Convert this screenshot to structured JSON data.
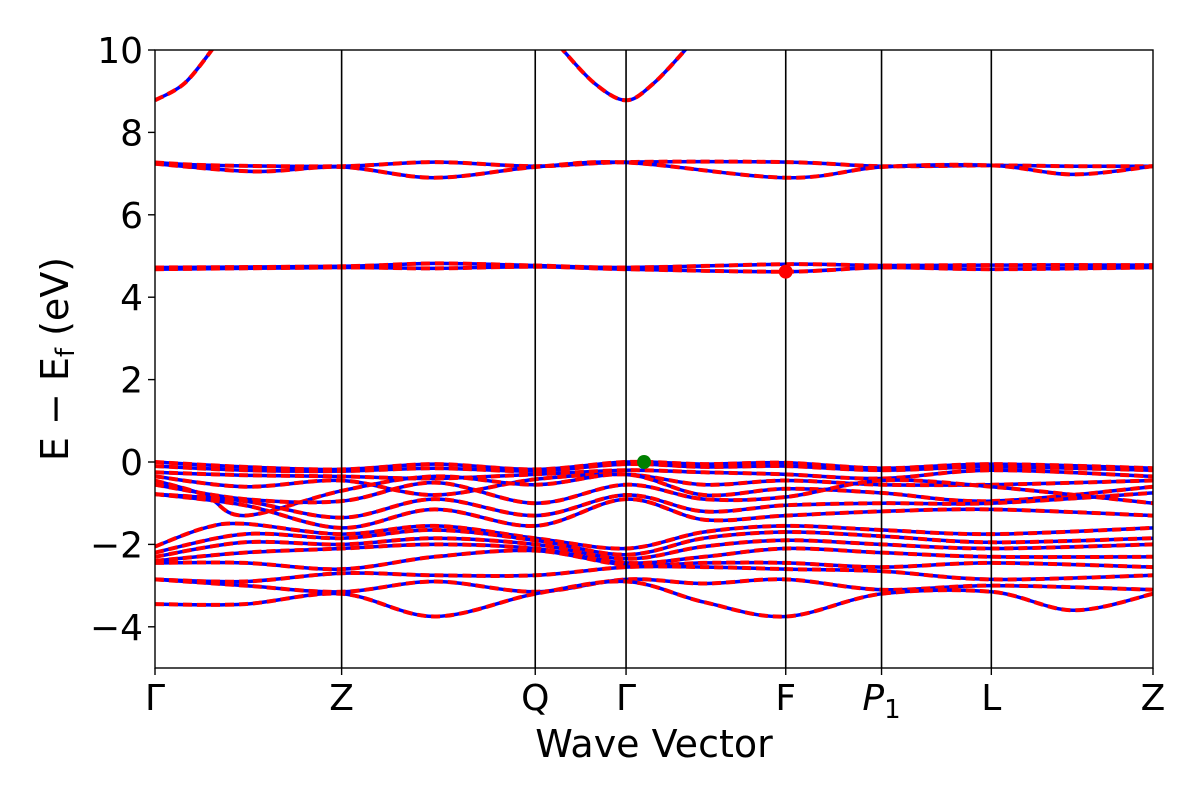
{
  "chart_data": {
    "type": "line",
    "title": "",
    "xlabel": "Wave Vector",
    "ylabel": "E − E",
    "ylabel_sub": "f",
    "ylabel_unit": " (eV)",
    "ylim": [
      -5,
      10
    ],
    "y_ticks": [
      -4,
      -2,
      0,
      2,
      4,
      6,
      8,
      10
    ],
    "y_tick_labels": [
      "−4",
      "−2",
      "0",
      "2",
      "4",
      "6",
      "8",
      "10"
    ],
    "x_range": [
      0,
      1
    ],
    "x_ticks": [
      {
        "label": "Γ",
        "sub": "",
        "pos": 0.0
      },
      {
        "label": "Z",
        "sub": "",
        "pos": 0.187
      },
      {
        "label": "Q",
        "sub": "",
        "pos": 0.381
      },
      {
        "label": "Γ",
        "sub": "",
        "pos": 0.472
      },
      {
        "label": "F",
        "sub": "",
        "pos": 0.632
      },
      {
        "label": "P",
        "sub": "1",
        "pos": 0.728
      },
      {
        "label": "L",
        "sub": "",
        "pos": 0.838
      },
      {
        "label": "Z",
        "sub": "",
        "pos": 1.0
      }
    ],
    "colors": {
      "spin_up": "#ff0000",
      "spin_down": "#0000ff",
      "vbm_marker": "#008000",
      "cbm_marker": "#ff0000"
    },
    "markers": [
      {
        "name": "vbm",
        "x": 0.49,
        "y": 0.0,
        "color": "#008000"
      },
      {
        "name": "cbm",
        "x": 0.632,
        "y": 4.62,
        "color": "#ff0000"
      }
    ],
    "series": [
      {
        "values": [
          [
            0,
            8.78
          ],
          [
            0.03,
            9.2
          ],
          [
            0.06,
            10.1
          ]
        ]
      },
      {
        "values": [
          [
            0.405,
            10.1
          ],
          [
            0.44,
            9.2
          ],
          [
            0.472,
            8.78
          ],
          [
            0.5,
            9.2
          ],
          [
            0.535,
            10.1
          ]
        ]
      },
      {
        "values": [
          [
            0,
            7.27
          ],
          [
            0.06,
            7.2
          ],
          [
            0.187,
            7.18
          ],
          [
            0.28,
            7.28
          ],
          [
            0.381,
            7.18
          ],
          [
            0.472,
            7.28
          ],
          [
            0.632,
            7.28
          ],
          [
            0.728,
            7.18
          ],
          [
            0.838,
            7.2
          ],
          [
            0.92,
            7.18
          ],
          [
            1.0,
            7.18
          ]
        ]
      },
      {
        "values": [
          [
            0,
            7.24
          ],
          [
            0.1,
            7.05
          ],
          [
            0.187,
            7.16
          ],
          [
            0.28,
            6.9
          ],
          [
            0.381,
            7.16
          ],
          [
            0.472,
            7.27
          ],
          [
            0.632,
            6.9
          ],
          [
            0.728,
            7.16
          ],
          [
            0.838,
            7.2
          ],
          [
            0.92,
            6.98
          ],
          [
            1.0,
            7.18
          ]
        ]
      },
      {
        "values": [
          [
            0,
            4.72
          ],
          [
            0.187,
            4.75
          ],
          [
            0.28,
            4.82
          ],
          [
            0.381,
            4.77
          ],
          [
            0.472,
            4.72
          ],
          [
            0.632,
            4.8
          ],
          [
            0.728,
            4.77
          ],
          [
            0.838,
            4.78
          ],
          [
            1.0,
            4.78
          ]
        ]
      },
      {
        "values": [
          [
            0,
            4.68
          ],
          [
            0.187,
            4.72
          ],
          [
            0.28,
            4.7
          ],
          [
            0.381,
            4.74
          ],
          [
            0.472,
            4.68
          ],
          [
            0.632,
            4.62
          ],
          [
            0.728,
            4.72
          ],
          [
            0.838,
            4.68
          ],
          [
            1.0,
            4.72
          ]
        ]
      },
      {
        "values": [
          [
            0,
            0.0
          ],
          [
            0.09,
            -0.12
          ],
          [
            0.187,
            -0.18
          ],
          [
            0.28,
            -0.05
          ],
          [
            0.381,
            -0.18
          ],
          [
            0.472,
            0.0
          ],
          [
            0.55,
            -0.05
          ],
          [
            0.632,
            -0.02
          ],
          [
            0.728,
            -0.15
          ],
          [
            0.838,
            -0.05
          ],
          [
            1.0,
            -0.15
          ]
        ]
      },
      {
        "values": [
          [
            0,
            -0.1
          ],
          [
            0.09,
            -0.2
          ],
          [
            0.187,
            -0.22
          ],
          [
            0.28,
            -0.15
          ],
          [
            0.381,
            -0.22
          ],
          [
            0.472,
            -0.05
          ],
          [
            0.55,
            -0.12
          ],
          [
            0.632,
            -0.1
          ],
          [
            0.728,
            -0.2
          ],
          [
            0.838,
            -0.12
          ],
          [
            1.0,
            -0.2
          ]
        ]
      },
      {
        "values": [
          [
            0,
            -0.25
          ],
          [
            0.09,
            -0.32
          ],
          [
            0.187,
            -0.35
          ],
          [
            0.28,
            -0.4
          ],
          [
            0.381,
            -0.3
          ],
          [
            0.472,
            -0.2
          ],
          [
            0.55,
            -0.25
          ],
          [
            0.632,
            -0.3
          ],
          [
            0.728,
            -0.4
          ],
          [
            0.838,
            -0.2
          ],
          [
            1.0,
            -0.35
          ]
        ]
      },
      {
        "values": [
          [
            0,
            -0.35
          ],
          [
            0.09,
            -0.6
          ],
          [
            0.187,
            -0.45
          ],
          [
            0.28,
            -0.8
          ],
          [
            0.381,
            -0.42
          ],
          [
            0.472,
            -0.3
          ],
          [
            0.55,
            -0.55
          ],
          [
            0.632,
            -0.45
          ],
          [
            0.728,
            -0.55
          ],
          [
            0.838,
            -0.55
          ],
          [
            1.0,
            -0.45
          ]
        ]
      },
      {
        "values": [
          [
            0,
            -0.45
          ],
          [
            0.05,
            -0.8
          ],
          [
            0.09,
            -1.3
          ],
          [
            0.187,
            -0.7
          ],
          [
            0.28,
            -0.35
          ],
          [
            0.381,
            -0.55
          ],
          [
            0.472,
            -0.3
          ],
          [
            0.55,
            -0.8
          ],
          [
            0.632,
            -0.65
          ],
          [
            0.728,
            -0.75
          ],
          [
            0.838,
            -0.95
          ],
          [
            1.0,
            -0.6
          ]
        ]
      },
      {
        "values": [
          [
            0,
            -0.55
          ],
          [
            0.09,
            -0.9
          ],
          [
            0.187,
            -0.95
          ],
          [
            0.28,
            -0.5
          ],
          [
            0.381,
            -1.0
          ],
          [
            0.472,
            -0.55
          ],
          [
            0.55,
            -0.9
          ],
          [
            0.632,
            -0.85
          ],
          [
            0.728,
            -0.45
          ],
          [
            0.838,
            -0.6
          ],
          [
            1.0,
            -1.0
          ]
        ]
      },
      {
        "values": [
          [
            0,
            -0.78
          ],
          [
            0.09,
            -0.95
          ],
          [
            0.187,
            -1.35
          ],
          [
            0.28,
            -0.9
          ],
          [
            0.381,
            -1.3
          ],
          [
            0.472,
            -0.8
          ],
          [
            0.55,
            -1.2
          ],
          [
            0.632,
            -1.05
          ],
          [
            0.728,
            -1.0
          ],
          [
            0.838,
            -1.0
          ],
          [
            1.0,
            -0.75
          ]
        ]
      },
      {
        "values": [
          [
            0,
            -0.78
          ],
          [
            0.09,
            -1.05
          ],
          [
            0.187,
            -1.6
          ],
          [
            0.28,
            -1.15
          ],
          [
            0.381,
            -1.55
          ],
          [
            0.472,
            -0.9
          ],
          [
            0.55,
            -1.4
          ],
          [
            0.632,
            -1.3
          ],
          [
            0.728,
            -1.2
          ],
          [
            0.838,
            -1.15
          ],
          [
            1.0,
            -1.3
          ]
        ]
      },
      {
        "values": [
          [
            0,
            -2.05
          ],
          [
            0.05,
            -1.6
          ],
          [
            0.09,
            -1.5
          ],
          [
            0.187,
            -1.75
          ],
          [
            0.28,
            -1.55
          ],
          [
            0.381,
            -1.85
          ],
          [
            0.472,
            -2.1
          ],
          [
            0.55,
            -1.7
          ],
          [
            0.632,
            -1.55
          ],
          [
            0.728,
            -1.65
          ],
          [
            0.838,
            -1.75
          ],
          [
            1.0,
            -1.6
          ]
        ]
      },
      {
        "values": [
          [
            0,
            -2.2
          ],
          [
            0.09,
            -1.75
          ],
          [
            0.187,
            -1.85
          ],
          [
            0.28,
            -1.65
          ],
          [
            0.381,
            -1.9
          ],
          [
            0.472,
            -2.25
          ],
          [
            0.55,
            -1.85
          ],
          [
            0.632,
            -1.7
          ],
          [
            0.728,
            -1.8
          ],
          [
            0.838,
            -1.95
          ],
          [
            1.0,
            -1.85
          ]
        ]
      },
      {
        "values": [
          [
            0,
            -2.3
          ],
          [
            0.09,
            -1.95
          ],
          [
            0.187,
            -2.0
          ],
          [
            0.28,
            -1.85
          ],
          [
            0.381,
            -2.0
          ],
          [
            0.472,
            -2.35
          ],
          [
            0.55,
            -2.05
          ],
          [
            0.632,
            -1.9
          ],
          [
            0.728,
            -2.0
          ],
          [
            0.838,
            -2.1
          ],
          [
            1.0,
            -2.0
          ]
        ]
      },
      {
        "values": [
          [
            0,
            -2.4
          ],
          [
            0.09,
            -2.2
          ],
          [
            0.187,
            -2.1
          ],
          [
            0.28,
            -2.0
          ],
          [
            0.381,
            -2.1
          ],
          [
            0.472,
            -2.45
          ],
          [
            0.55,
            -2.3
          ],
          [
            0.632,
            -2.1
          ],
          [
            0.728,
            -2.2
          ],
          [
            0.838,
            -2.3
          ],
          [
            1.0,
            -2.3
          ]
        ]
      },
      {
        "values": [
          [
            0,
            -2.45
          ],
          [
            0.09,
            -2.45
          ],
          [
            0.187,
            -2.6
          ],
          [
            0.28,
            -2.3
          ],
          [
            0.381,
            -2.15
          ],
          [
            0.472,
            -2.5
          ],
          [
            0.55,
            -2.45
          ],
          [
            0.632,
            -2.45
          ],
          [
            0.728,
            -2.55
          ],
          [
            0.838,
            -2.45
          ],
          [
            1.0,
            -2.55
          ]
        ]
      },
      {
        "values": [
          [
            0,
            -2.85
          ],
          [
            0.09,
            -2.9
          ],
          [
            0.187,
            -2.7
          ],
          [
            0.28,
            -2.75
          ],
          [
            0.381,
            -2.75
          ],
          [
            0.472,
            -2.55
          ],
          [
            0.55,
            -2.55
          ],
          [
            0.632,
            -2.6
          ],
          [
            0.728,
            -2.65
          ],
          [
            0.838,
            -2.85
          ],
          [
            1.0,
            -2.75
          ]
        ]
      },
      {
        "values": [
          [
            0,
            -2.85
          ],
          [
            0.09,
            -3.0
          ],
          [
            0.187,
            -3.15
          ],
          [
            0.28,
            -2.9
          ],
          [
            0.381,
            -3.15
          ],
          [
            0.472,
            -2.85
          ],
          [
            0.55,
            -2.95
          ],
          [
            0.632,
            -2.85
          ],
          [
            0.728,
            -3.1
          ],
          [
            0.838,
            -3.0
          ],
          [
            1.0,
            -3.1
          ]
        ]
      },
      {
        "values": [
          [
            0,
            -3.45
          ],
          [
            0.09,
            -3.45
          ],
          [
            0.187,
            -3.2
          ],
          [
            0.28,
            -3.75
          ],
          [
            0.381,
            -3.2
          ],
          [
            0.472,
            -2.9
          ],
          [
            0.55,
            -3.4
          ],
          [
            0.632,
            -3.75
          ],
          [
            0.728,
            -3.2
          ],
          [
            0.838,
            -3.15
          ],
          [
            0.92,
            -3.6
          ],
          [
            1.0,
            -3.2
          ]
        ]
      }
    ]
  }
}
